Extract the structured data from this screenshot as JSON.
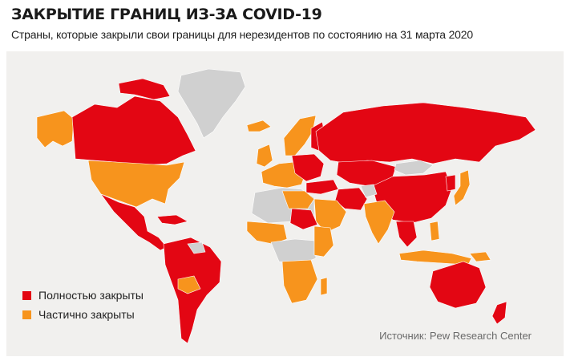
{
  "title": "ЗАКРЫТИЕ ГРАНИЦ ИЗ-ЗА COVID-19",
  "subtitle": "Страны, которые закрыли свои границы для нерезидентов по состоянию на 31 марта 2020",
  "legend": [
    {
      "label": "Полностью закрыты",
      "color": "#e30613"
    },
    {
      "label": "Частично закрыты",
      "color": "#f7941d"
    }
  ],
  "source": "Источник: Pew Research Center",
  "colors": {
    "full": "#e30613",
    "partial": "#f7941d",
    "none": "#d0d0d0",
    "background": "#f1f0ee"
  }
}
